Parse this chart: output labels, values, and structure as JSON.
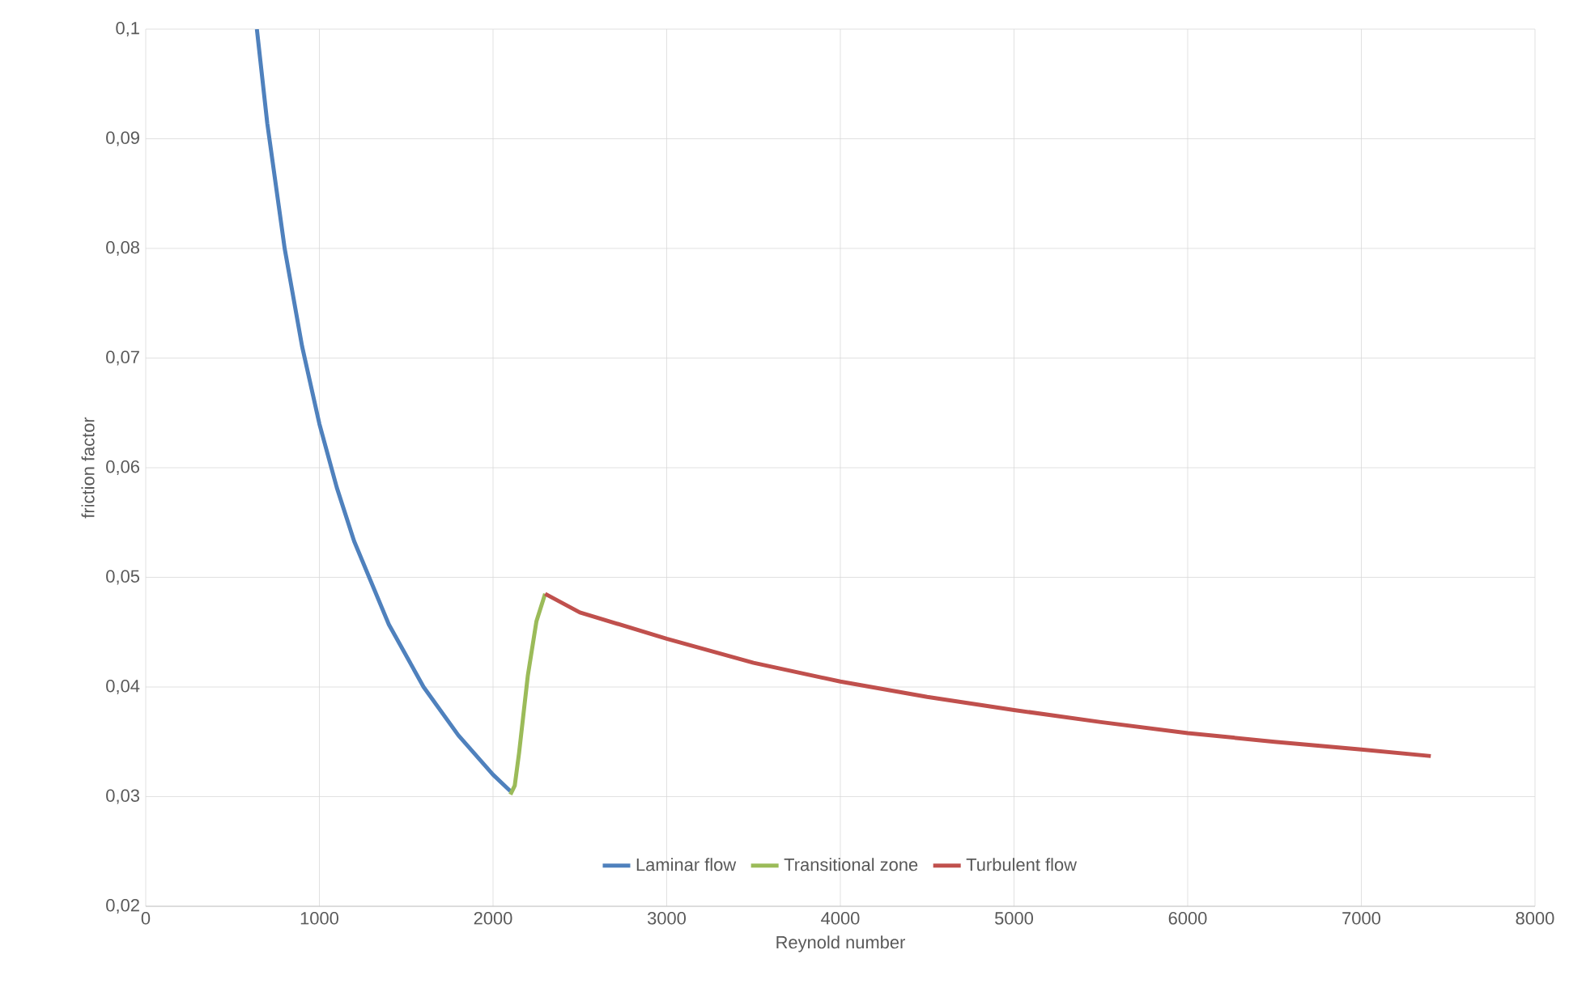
{
  "chart_data": {
    "type": "line",
    "xlabel": "Reynold number",
    "ylabel": "friction factor",
    "xlim": [
      0,
      8000
    ],
    "xticks": [
      0,
      1000,
      2000,
      3000,
      4000,
      5000,
      6000,
      7000,
      8000
    ],
    "ylim": [
      0.02,
      0.1
    ],
    "yticks": [
      {
        "value": 0.02,
        "label": "0,02"
      },
      {
        "value": 0.03,
        "label": "0,03"
      },
      {
        "value": 0.04,
        "label": "0,04"
      },
      {
        "value": 0.05,
        "label": "0,05"
      },
      {
        "value": 0.06,
        "label": "0,06"
      },
      {
        "value": 0.07,
        "label": "0,07"
      },
      {
        "value": 0.08,
        "label": "0,08"
      },
      {
        "value": 0.09,
        "label": "0,09"
      },
      {
        "value": 0.1,
        "label": "0,1"
      }
    ],
    "grid": true,
    "legend": "bottom",
    "series": [
      {
        "name": "Laminar flow",
        "color": "#4f81bd",
        "x": [
          640,
          700,
          800,
          900,
          1000,
          1100,
          1200,
          1400,
          1600,
          1800,
          2000,
          2100
        ],
        "values": [
          0.1,
          0.0914,
          0.08,
          0.0711,
          0.064,
          0.0582,
          0.0533,
          0.0457,
          0.04,
          0.0356,
          0.032,
          0.0305
        ]
      },
      {
        "name": "Transitional zone",
        "color": "#9bbb59",
        "x": [
          2100,
          2125,
          2150,
          2200,
          2250,
          2300
        ],
        "values": [
          0.0302,
          0.031,
          0.034,
          0.041,
          0.046,
          0.0485
        ]
      },
      {
        "name": "Turbulent flow",
        "color": "#c0504d",
        "x": [
          2300,
          2500,
          3000,
          3500,
          4000,
          4500,
          5000,
          5500,
          6000,
          6500,
          7000,
          7400
        ],
        "values": [
          0.0485,
          0.0468,
          0.0444,
          0.0422,
          0.0405,
          0.0391,
          0.0379,
          0.0368,
          0.0358,
          0.035,
          0.0343,
          0.0337
        ]
      }
    ]
  }
}
